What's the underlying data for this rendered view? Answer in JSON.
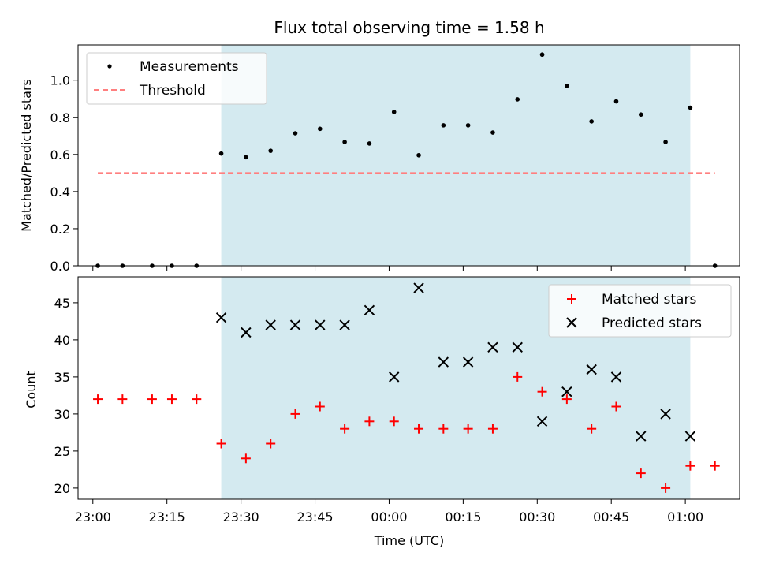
{
  "title": "Flux total observing time = 1.58 h",
  "chart_data": [
    {
      "type": "scatter",
      "ylabel": "Matched/Predicted stars",
      "ylim": [
        0,
        1.19
      ],
      "yticks": [
        "0.0",
        "0.2",
        "0.4",
        "0.6",
        "0.8",
        "1.0"
      ],
      "ytick_values": [
        0,
        0.2,
        0.4,
        0.6,
        0.8,
        1.0
      ],
      "shaded_span": [
        "23:26",
        "01:01"
      ],
      "shade_color": "#d4eaf0",
      "legend_placement": "upper-left",
      "series": [
        {
          "name": "Measurements",
          "marker": "dot",
          "color": "#000000",
          "x": [
            "23:01",
            "23:06",
            "23:12",
            "23:16",
            "23:21",
            "23:26",
            "23:31",
            "23:36",
            "23:41",
            "23:46",
            "23:51",
            "23:56",
            "00:01",
            "00:06",
            "00:11",
            "00:16",
            "00:21",
            "00:26",
            "00:31",
            "00:36",
            "00:41",
            "00:46",
            "00:51",
            "00:56",
            "01:01",
            "01:06"
          ],
          "values": [
            0.0,
            0.0,
            0.0,
            0.0,
            0.0,
            0.605,
            0.585,
            0.62,
            0.714,
            0.738,
            0.667,
            0.659,
            0.829,
            0.596,
            0.757,
            0.757,
            0.718,
            0.897,
            1.138,
            0.97,
            0.778,
            0.886,
            0.815,
            0.667,
            0.852,
            0.0
          ]
        },
        {
          "name": "Threshold",
          "style": "dashed",
          "color": "#ff7f7f",
          "x": [
            "23:01",
            "01:06"
          ],
          "values": [
            0.5,
            0.5
          ]
        }
      ]
    },
    {
      "type": "scatter",
      "xlabel": "Time (UTC)",
      "ylabel": "Count",
      "ylim": [
        18.5,
        48.5
      ],
      "yticks": [
        "20",
        "25",
        "30",
        "35",
        "40",
        "45"
      ],
      "ytick_values": [
        20,
        25,
        30,
        35,
        40,
        45
      ],
      "xticks": [
        "23:00",
        "23:15",
        "23:30",
        "23:45",
        "00:00",
        "00:15",
        "00:30",
        "00:45",
        "01:00"
      ],
      "xlim": [
        "22:57",
        "01:11"
      ],
      "shaded_span": [
        "23:26",
        "01:01"
      ],
      "legend_placement": "upper-right",
      "series": [
        {
          "name": "Matched stars",
          "marker": "plus",
          "color": "#ff0000",
          "x": [
            "23:01",
            "23:06",
            "23:12",
            "23:16",
            "23:21",
            "23:26",
            "23:31",
            "23:36",
            "23:41",
            "23:46",
            "23:51",
            "23:56",
            "00:01",
            "00:06",
            "00:11",
            "00:16",
            "00:21",
            "00:26",
            "00:31",
            "00:36",
            "00:41",
            "00:46",
            "00:51",
            "00:56",
            "01:01",
            "01:06"
          ],
          "values": [
            32,
            32,
            32,
            32,
            32,
            26,
            24,
            26,
            30,
            31,
            28,
            29,
            29,
            28,
            28,
            28,
            28,
            35,
            33,
            32,
            28,
            31,
            22,
            20,
            23,
            23
          ]
        },
        {
          "name": "Predicted stars",
          "marker": "x",
          "color": "#000000",
          "x": [
            "23:26",
            "23:31",
            "23:36",
            "23:41",
            "23:46",
            "23:51",
            "23:56",
            "00:01",
            "00:06",
            "00:11",
            "00:16",
            "00:21",
            "00:26",
            "00:31",
            "00:36",
            "00:41",
            "00:46",
            "00:51",
            "00:56",
            "01:01"
          ],
          "values": [
            43,
            41,
            42,
            42,
            42,
            42,
            44,
            35,
            47,
            37,
            37,
            39,
            39,
            29,
            33,
            36,
            35,
            27,
            30,
            27
          ]
        }
      ]
    }
  ]
}
